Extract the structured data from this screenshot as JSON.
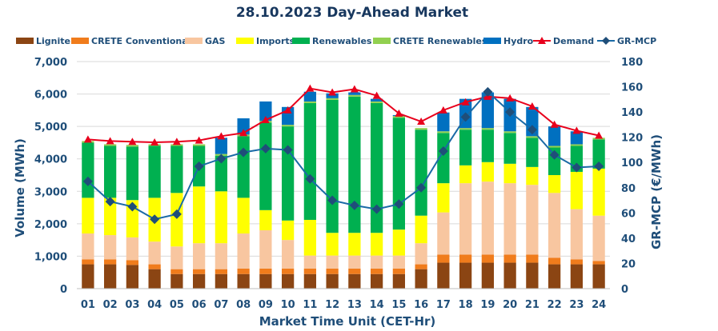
{
  "chart_data": {
    "type": "bar",
    "stacked": true,
    "title": "28.10.2023  Day-Ahead Market",
    "xlabel": "Market Time Unit (CET-Hr)",
    "ylabel": "Volume (MWh)",
    "y2label": "GR-MCP (€/MWh)",
    "ylim": [
      0,
      7000
    ],
    "y2lim": [
      0,
      180
    ],
    "yticks": [
      "0",
      "1,000",
      "2,000",
      "3,000",
      "4,000",
      "5,000",
      "6,000",
      "7,000"
    ],
    "y2ticks": [
      "0",
      "20",
      "40",
      "60",
      "80",
      "100",
      "120",
      "140",
      "160",
      "180"
    ],
    "grid": true,
    "legend_position": "top",
    "categories": [
      "01",
      "02",
      "03",
      "04",
      "05",
      "06",
      "07",
      "08",
      "09",
      "10",
      "11",
      "12",
      "13",
      "14",
      "15",
      "16",
      "17",
      "18",
      "19",
      "20",
      "21",
      "22",
      "23",
      "24"
    ],
    "series": [
      {
        "name": "Lignite",
        "kind": "bar",
        "color": "#8b4513",
        "values": [
          750,
          750,
          730,
          600,
          450,
          450,
          450,
          450,
          450,
          450,
          450,
          450,
          450,
          450,
          450,
          600,
          800,
          800,
          800,
          800,
          800,
          750,
          750,
          750
        ]
      },
      {
        "name": "CRETE Conventional",
        "kind": "bar",
        "color": "#f07c1c",
        "values": [
          150,
          150,
          150,
          150,
          150,
          150,
          150,
          170,
          170,
          170,
          170,
          170,
          170,
          170,
          170,
          150,
          250,
          250,
          250,
          250,
          250,
          200,
          150,
          100
        ]
      },
      {
        "name": "GAS",
        "kind": "bar",
        "color": "#f8c6a0",
        "values": [
          800,
          750,
          700,
          700,
          700,
          800,
          800,
          1080,
          1180,
          880,
          400,
          400,
          400,
          400,
          400,
          650,
          1300,
          2200,
          2250,
          2200,
          2150,
          2000,
          1550,
          1400
        ]
      },
      {
        "name": "Imports",
        "kind": "bar",
        "color": "#ffff00",
        "values": [
          1100,
          1150,
          1150,
          1350,
          1650,
          1750,
          1600,
          1100,
          620,
          600,
          1100,
          700,
          700,
          700,
          800,
          850,
          900,
          550,
          600,
          600,
          550,
          550,
          1150,
          1450
        ]
      },
      {
        "name": "Renewables",
        "kind": "bar",
        "color": "#00b050",
        "values": [
          1700,
          1600,
          1650,
          1600,
          1450,
          1250,
          1100,
          1900,
          2700,
          2900,
          3600,
          4100,
          4200,
          4000,
          3450,
          2650,
          1550,
          1100,
          1000,
          950,
          900,
          850,
          800,
          900
        ]
      },
      {
        "name": "CRETE Renewables",
        "kind": "bar",
        "color": "#92d050",
        "values": [
          50,
          50,
          50,
          50,
          50,
          50,
          50,
          50,
          50,
          50,
          50,
          50,
          50,
          50,
          50,
          50,
          50,
          50,
          50,
          50,
          50,
          50,
          50,
          50
        ]
      },
      {
        "name": "Hydro",
        "kind": "bar",
        "color": "#0070c0",
        "values": [
          0,
          0,
          0,
          0,
          0,
          0,
          500,
          500,
          600,
          550,
          300,
          150,
          80,
          80,
          30,
          0,
          580,
          900,
          1100,
          1000,
          900,
          600,
          400,
          0
        ]
      },
      {
        "name": "Demand",
        "kind": "line",
        "axis": "left",
        "color": "#e8001c",
        "marker": "triangle",
        "values": [
          4600,
          4550,
          4530,
          4510,
          4530,
          4570,
          4700,
          4800,
          5200,
          5500,
          6170,
          6050,
          6150,
          5950,
          5400,
          5150,
          5500,
          5750,
          5920,
          5870,
          5620,
          5060,
          4870,
          4720
        ]
      },
      {
        "name": "GR-MCP",
        "kind": "line",
        "axis": "right",
        "color": "#1a6aa6",
        "marker": "diamond",
        "values": [
          85,
          69,
          65,
          55,
          59,
          97,
          103,
          108,
          111,
          110,
          87,
          70,
          66,
          63,
          67,
          80,
          109,
          136,
          156,
          140,
          126,
          106,
          96,
          97
        ]
      }
    ]
  }
}
